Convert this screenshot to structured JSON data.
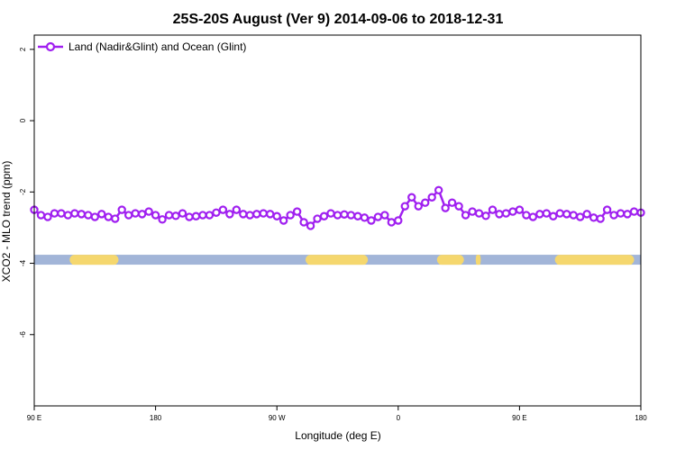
{
  "chart_data": {
    "type": "line",
    "title": "25S-20S August (Ver 9)   2014-09-06 to 2018-12-31",
    "xlabel": "Longitude (deg E)",
    "ylabel": "XCO2 - MLO trend (ppm)",
    "xlim": [
      90,
      450
    ],
    "ylim": [
      -8,
      2.4
    ],
    "x_ticks": [
      90,
      162,
      234,
      306,
      378,
      450
    ],
    "x_tick_labels": [
      "90 E",
      "180",
      "90 W",
      "0",
      "90 E",
      "180"
    ],
    "y_ticks": [
      2,
      0,
      -2,
      -4,
      -6
    ],
    "y_tick_labels": [
      "2",
      "0",
      "-2",
      "-4",
      "-6"
    ],
    "legend": {
      "position": "top-left",
      "label": "Land (Nadir&Glint) and Ocean (Glint)"
    },
    "colors": {
      "series": "#a020f0",
      "land": "#f5d76e",
      "ocean": "#a2b5d8"
    },
    "surface_strip": {
      "y_center": -3.9,
      "land_segments": [
        [
          111,
          140
        ],
        [
          251,
          288
        ],
        [
          329,
          345
        ],
        [
          352,
          355
        ],
        [
          399,
          446
        ]
      ]
    },
    "series": [
      {
        "name": "Land (Nadir&Glint) and Ocean (Glint)",
        "x": [
          90,
          94,
          98,
          102,
          106,
          110,
          114,
          118,
          122,
          126,
          130,
          134,
          138,
          142,
          146,
          150,
          154,
          158,
          162,
          166,
          170,
          174,
          178,
          182,
          186,
          190,
          194,
          198,
          202,
          206,
          210,
          214,
          218,
          222,
          226,
          230,
          234,
          238,
          242,
          246,
          250,
          254,
          258,
          262,
          266,
          270,
          274,
          278,
          282,
          286,
          290,
          294,
          298,
          302,
          306,
          310,
          314,
          318,
          322,
          326,
          330,
          334,
          338,
          342,
          346,
          350,
          354,
          358,
          362,
          366,
          370,
          374,
          378,
          382,
          386,
          390,
          394,
          398,
          402,
          406,
          410,
          414,
          418,
          422,
          426,
          430,
          434,
          438,
          442,
          446,
          450
        ],
        "y": [
          -2.5,
          -2.65,
          -2.7,
          -2.6,
          -2.6,
          -2.65,
          -2.6,
          -2.62,
          -2.65,
          -2.7,
          -2.62,
          -2.7,
          -2.75,
          -2.5,
          -2.65,
          -2.6,
          -2.62,
          -2.55,
          -2.65,
          -2.77,
          -2.65,
          -2.67,
          -2.6,
          -2.7,
          -2.68,
          -2.65,
          -2.65,
          -2.58,
          -2.5,
          -2.62,
          -2.5,
          -2.62,
          -2.65,
          -2.62,
          -2.6,
          -2.62,
          -2.68,
          -2.8,
          -2.65,
          -2.55,
          -2.85,
          -2.95,
          -2.75,
          -2.68,
          -2.6,
          -2.65,
          -2.63,
          -2.65,
          -2.68,
          -2.72,
          -2.8,
          -2.7,
          -2.65,
          -2.85,
          -2.8,
          -2.4,
          -2.15,
          -2.4,
          -2.3,
          -2.15,
          -1.95,
          -2.45,
          -2.3,
          -2.4,
          -2.65,
          -2.55,
          -2.6,
          -2.67,
          -2.5,
          -2.62,
          -2.6,
          -2.55,
          -2.5,
          -2.65,
          -2.7,
          -2.62,
          -2.6,
          -2.68,
          -2.6,
          -2.62,
          -2.65,
          -2.7,
          -2.62,
          -2.72,
          -2.75,
          -2.5,
          -2.65,
          -2.6,
          -2.62,
          -2.55,
          -2.58
        ]
      }
    ]
  }
}
